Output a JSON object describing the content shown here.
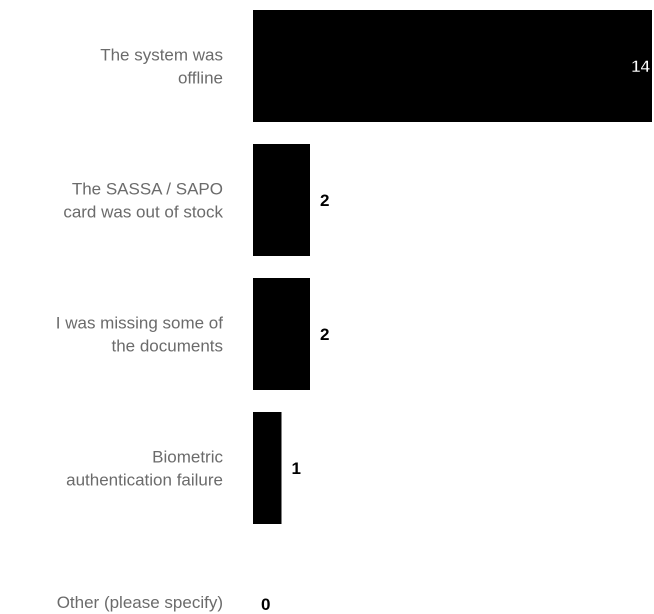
{
  "chart_data": {
    "type": "bar",
    "orientation": "horizontal",
    "title": "",
    "xlabel": "",
    "ylabel": "",
    "categories": [
      "The system was offline",
      "The SASSA / SAPO card was out of stock",
      "I was missing some of the documents",
      "Biometric authentication failure",
      "Other (please specify)"
    ],
    "category_label_lines": [
      [
        "The system was",
        "offline"
      ],
      [
        "The SASSA / SAPO",
        "card was out of stock"
      ],
      [
        "I was missing some of",
        "the documents"
      ],
      [
        "Biometric",
        "authentication failure"
      ],
      [
        "Other (please specify)"
      ]
    ],
    "values": [
      14,
      2,
      2,
      1,
      0
    ],
    "value_labels": [
      "14",
      "2",
      "2",
      "1",
      "0"
    ],
    "xlim": [
      0,
      14
    ],
    "grid": false,
    "legend": "none",
    "bar_color": "#000000",
    "label_color": "#6b6b6b"
  }
}
